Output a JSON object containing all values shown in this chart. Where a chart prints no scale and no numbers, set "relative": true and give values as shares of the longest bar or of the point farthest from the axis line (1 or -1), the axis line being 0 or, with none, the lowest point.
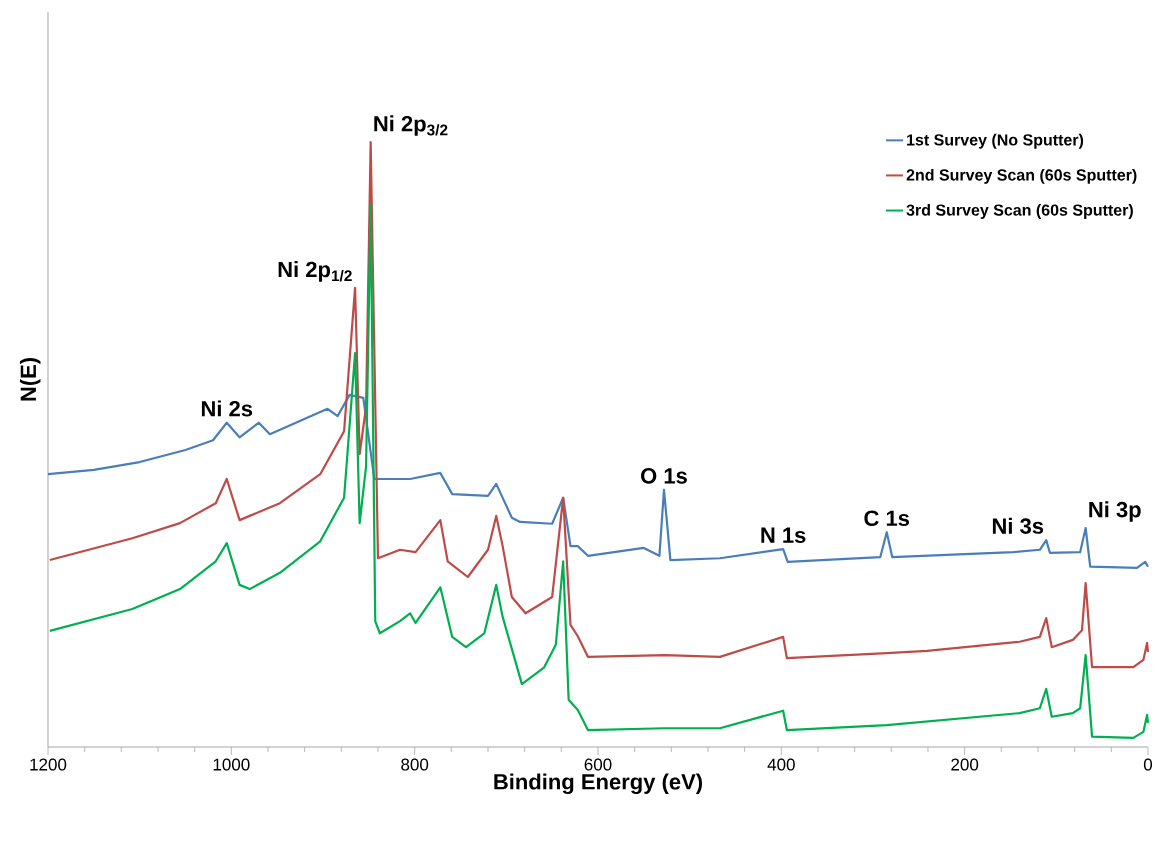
{
  "chart_data": {
    "type": "line",
    "relative": true,
    "xlabel": "Binding Energy (eV)",
    "ylabel": "N(E)",
    "xlim": [
      1200,
      0
    ],
    "xticks": [
      1200,
      1000,
      800,
      600,
      400,
      200,
      0,
      {
        "value": 1160,
        "label": null
      },
      {
        "value": 1120,
        "label": null
      },
      {
        "value": 1080,
        "label": null
      },
      {
        "value": 1040,
        "label": null
      },
      {
        "value": 960,
        "label": null
      },
      {
        "value": 920,
        "label": null
      },
      {
        "value": 880,
        "label": null
      },
      {
        "value": 840,
        "label": null
      },
      {
        "value": 760,
        "label": null
      },
      {
        "value": 720,
        "label": null
      },
      {
        "value": 680,
        "label": null
      },
      {
        "value": 640,
        "label": null
      },
      {
        "value": 560,
        "label": null
      },
      {
        "value": 520,
        "label": null
      },
      {
        "value": 480,
        "label": null
      },
      {
        "value": 440,
        "label": null
      },
      {
        "value": 360,
        "label": null
      },
      {
        "value": 320,
        "label": null
      },
      {
        "value": 280,
        "label": null
      },
      {
        "value": 240,
        "label": null
      },
      {
        "value": 160,
        "label": null
      },
      {
        "value": 120,
        "label": null
      },
      {
        "value": 80,
        "label": null
      },
      {
        "value": 40,
        "label": null
      }
    ],
    "legend": "top right",
    "grid": false,
    "marker": "none",
    "line_style": "solid",
    "series": [
      {
        "name": "1st Survey (No Sputter)",
        "color": "#4a7ebb",
        "x": [
          1200,
          1150,
          1100,
          1050,
          1020,
          1005,
          991,
          970,
          958,
          895,
          884,
          871,
          856,
          844,
          805,
          772,
          759,
          720,
          711,
          694,
          685,
          650,
          638,
          630,
          622,
          611,
          550,
          533,
          528,
          521,
          467,
          398,
          393,
          292,
          285,
          279,
          147,
          118,
          111,
          107,
          74,
          68,
          63,
          12,
          3,
          0
        ],
        "values": [
          0.451,
          0.458,
          0.471,
          0.491,
          0.507,
          0.536,
          0.512,
          0.536,
          0.517,
          0.559,
          0.547,
          0.582,
          0.577,
          0.443,
          0.443,
          0.453,
          0.418,
          0.415,
          0.435,
          0.379,
          0.372,
          0.369,
          0.412,
          0.332,
          0.332,
          0.316,
          0.329,
          0.316,
          0.425,
          0.309,
          0.312,
          0.327,
          0.306,
          0.314,
          0.355,
          0.314,
          0.322,
          0.326,
          0.342,
          0.321,
          0.322,
          0.362,
          0.298,
          0.296,
          0.306,
          0.298
        ]
      },
      {
        "name": "2nd Survey Scan (60s Sputter)",
        "color": "#be4b48",
        "x": [
          1198,
          1108,
          1056,
          1017,
          1005,
          991,
          947,
          903,
          877,
          865,
          860,
          853,
          848,
          840,
          816,
          799,
          772,
          764,
          742,
          720,
          711,
          704,
          694,
          679,
          650,
          638,
          630,
          622,
          611,
          527,
          467,
          398,
          394,
          285,
          241,
          140,
          118,
          111,
          105,
          82,
          72,
          68,
          61,
          16,
          5,
          1,
          0
        ],
        "values": [
          0.309,
          0.345,
          0.37,
          0.403,
          0.443,
          0.375,
          0.403,
          0.451,
          0.522,
          0.759,
          0.484,
          0.562,
          1.0,
          0.312,
          0.326,
          0.322,
          0.375,
          0.307,
          0.281,
          0.326,
          0.382,
          0.332,
          0.248,
          0.221,
          0.248,
          0.412,
          0.202,
          0.183,
          0.149,
          0.152,
          0.149,
          0.182,
          0.147,
          0.155,
          0.159,
          0.174,
          0.182,
          0.213,
          0.165,
          0.177,
          0.193,
          0.271,
          0.132,
          0.132,
          0.144,
          0.172,
          0.157
        ]
      },
      {
        "name": "3rd Survey Scan (60s Sputter)",
        "color": "#00b050",
        "x": [
          1198,
          1108,
          1056,
          1017,
          1005,
          991,
          980,
          947,
          903,
          877,
          865,
          860,
          853,
          848,
          843,
          838,
          816,
          805,
          799,
          772,
          759,
          744,
          724,
          711,
          704,
          683,
          659,
          646,
          638,
          632,
          622,
          611,
          528,
          467,
          398,
          394,
          285,
          140,
          118,
          111,
          105,
          82,
          74,
          68,
          61,
          16,
          5,
          1,
          0
        ],
        "values": [
          0.192,
          0.228,
          0.261,
          0.307,
          0.337,
          0.268,
          0.261,
          0.288,
          0.34,
          0.412,
          0.651,
          0.37,
          0.464,
          0.896,
          0.208,
          0.188,
          0.208,
          0.221,
          0.205,
          0.264,
          0.182,
          0.165,
          0.188,
          0.268,
          0.215,
          0.104,
          0.131,
          0.169,
          0.307,
          0.078,
          0.061,
          0.028,
          0.031,
          0.031,
          0.06,
          0.028,
          0.036,
          0.056,
          0.064,
          0.096,
          0.05,
          0.056,
          0.064,
          0.152,
          0.017,
          0.015,
          0.025,
          0.053,
          0.04
        ]
      }
    ],
    "annotations": [
      {
        "text": "Ni 2s",
        "x": 1005,
        "y": 0.536
      },
      {
        "text": "Ni 2p$_{1/2}$",
        "x": 865,
        "y": 0.759
      },
      {
        "text": "Ni 2p$_{3/2}$",
        "x": 848,
        "y": 1.0
      },
      {
        "text": "O 1s",
        "x": 528,
        "y": 0.425
      },
      {
        "text": "N 1s",
        "x": 398,
        "y": 0.327
      },
      {
        "text": "C 1s",
        "x": 285,
        "y": 0.355
      },
      {
        "text": "Ni 3s",
        "x": 111,
        "y": 0.342
      },
      {
        "text": "Ni 3p",
        "x": 68,
        "y": 0.362
      }
    ]
  }
}
